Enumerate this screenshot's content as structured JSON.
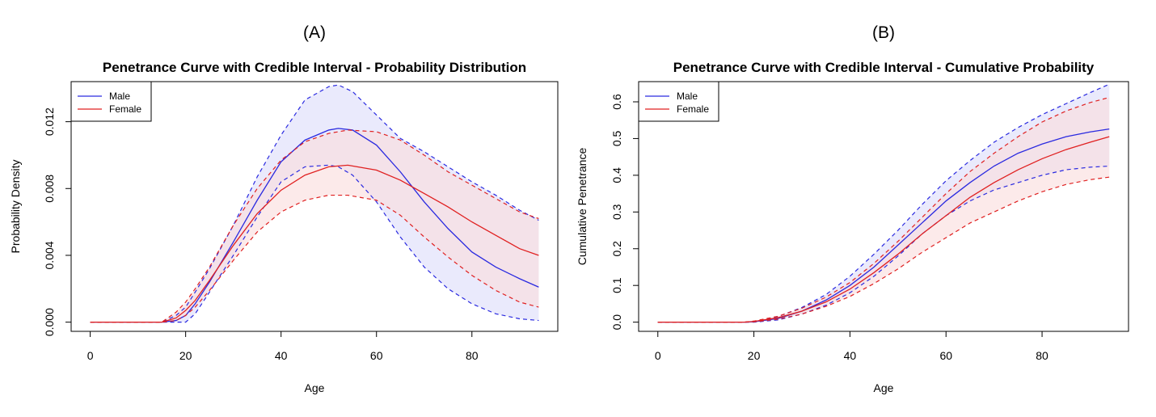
{
  "chart_data": [
    {
      "type": "line",
      "panel_label": "(A)",
      "title": "Penetrance Curve with Credible Interval - Probability Distribution",
      "xlabel": "Age",
      "ylabel": "Probability Density",
      "xlim": [
        -4,
        98
      ],
      "ylim": [
        -0.00055,
        0.0144
      ],
      "xticks": [
        0,
        20,
        40,
        60,
        80
      ],
      "xtick_labels": [
        "0",
        "20",
        "40",
        "60",
        "80"
      ],
      "yticks": [
        0,
        0.004,
        0.008,
        0.012
      ],
      "ytick_labels": [
        "0.000",
        "0.004",
        "0.008",
        "0.012"
      ],
      "legend_position": "top-left",
      "series": [
        {
          "name": "Male",
          "color": "#2a2ae0",
          "fill": "#dcdcfa",
          "x": [
            0,
            15,
            18,
            20,
            22,
            25,
            30,
            35,
            40,
            45,
            50,
            52,
            55,
            60,
            65,
            70,
            75,
            80,
            85,
            90,
            94
          ],
          "mean": [
            0,
            0,
            0.0001,
            0.0004,
            0.0011,
            0.0024,
            0.0048,
            0.0073,
            0.0096,
            0.0109,
            0.0115,
            0.0116,
            0.0115,
            0.0106,
            0.009,
            0.0072,
            0.0056,
            0.0042,
            0.0033,
            0.0026,
            0.0021
          ],
          "lower": [
            0,
            0,
            0,
            0,
            0.0005,
            0.0018,
            0.004,
            0.0063,
            0.0084,
            0.0093,
            0.0094,
            0.0093,
            0.0088,
            0.0072,
            0.0051,
            0.0033,
            0.002,
            0.0011,
            0.0005,
            0.0002,
            0.0001
          ],
          "upper": [
            0,
            0,
            0.0004,
            0.0009,
            0.0018,
            0.0032,
            0.0058,
            0.0087,
            0.0112,
            0.0133,
            0.0141,
            0.0142,
            0.0138,
            0.0124,
            0.011,
            0.0102,
            0.0093,
            0.0084,
            0.0076,
            0.0067,
            0.0061
          ]
        },
        {
          "name": "Female",
          "color": "#e02020",
          "fill": "#fadcdc",
          "x": [
            0,
            15,
            18,
            20,
            22,
            25,
            30,
            35,
            40,
            45,
            50,
            54,
            60,
            65,
            70,
            75,
            80,
            85,
            90,
            94
          ],
          "mean": [
            0,
            0,
            0.00025,
            0.0007,
            0.0013,
            0.0025,
            0.0046,
            0.0065,
            0.0079,
            0.0088,
            0.0093,
            0.0094,
            0.0091,
            0.0085,
            0.0077,
            0.0069,
            0.006,
            0.0052,
            0.0044,
            0.004
          ],
          "lower": [
            0,
            0,
            0.0001,
            0.0004,
            0.0009,
            0.0019,
            0.0037,
            0.0054,
            0.0066,
            0.0073,
            0.0076,
            0.0076,
            0.0073,
            0.0064,
            0.0051,
            0.0039,
            0.0028,
            0.0019,
            0.0012,
            0.0009
          ],
          "upper": [
            0,
            0,
            0.0006,
            0.0012,
            0.002,
            0.0033,
            0.0058,
            0.008,
            0.0097,
            0.0108,
            0.0113,
            0.0115,
            0.0114,
            0.0109,
            0.01,
            0.009,
            0.0082,
            0.0074,
            0.0066,
            0.0062
          ]
        }
      ]
    },
    {
      "type": "line",
      "panel_label": "(B)",
      "title": "Penetrance Curve with Credible Interval - Cumulative Probability",
      "xlabel": "Age",
      "ylabel": "Cumulative Penetrance",
      "xlim": [
        -4,
        98
      ],
      "ylim": [
        -0.025,
        0.655
      ],
      "xticks": [
        0,
        20,
        40,
        60,
        80
      ],
      "xtick_labels": [
        "0",
        "20",
        "40",
        "60",
        "80"
      ],
      "yticks": [
        0,
        0.1,
        0.2,
        0.3,
        0.4,
        0.5,
        0.6
      ],
      "ytick_labels": [
        "0.0",
        "0.1",
        "0.2",
        "0.3",
        "0.4",
        "0.5",
        "0.6"
      ],
      "legend_position": "top-left",
      "series": [
        {
          "name": "Male",
          "color": "#2a2ae0",
          "fill": "#dcdcfa",
          "x": [
            0,
            18,
            20,
            25,
            30,
            35,
            40,
            45,
            50,
            55,
            60,
            65,
            70,
            75,
            80,
            85,
            90,
            94
          ],
          "mean": [
            0,
            0,
            0.001,
            0.01,
            0.03,
            0.06,
            0.1,
            0.15,
            0.21,
            0.27,
            0.33,
            0.38,
            0.425,
            0.46,
            0.485,
            0.505,
            0.518,
            0.526
          ],
          "lower": [
            0,
            0,
            0,
            0.006,
            0.022,
            0.046,
            0.08,
            0.125,
            0.18,
            0.24,
            0.29,
            0.33,
            0.36,
            0.38,
            0.4,
            0.415,
            0.422,
            0.425
          ],
          "upper": [
            0,
            0,
            0.002,
            0.015,
            0.04,
            0.075,
            0.125,
            0.185,
            0.25,
            0.32,
            0.385,
            0.44,
            0.49,
            0.53,
            0.565,
            0.595,
            0.625,
            0.648
          ]
        },
        {
          "name": "Female",
          "color": "#e02020",
          "fill": "#fadcdc",
          "x": [
            0,
            18,
            20,
            25,
            30,
            35,
            40,
            45,
            50,
            55,
            60,
            65,
            70,
            75,
            80,
            85,
            90,
            94
          ],
          "mean": [
            0,
            0,
            0.002,
            0.012,
            0.03,
            0.055,
            0.09,
            0.135,
            0.185,
            0.24,
            0.29,
            0.34,
            0.38,
            0.415,
            0.445,
            0.47,
            0.49,
            0.505
          ],
          "lower": [
            0,
            0,
            0.001,
            0.008,
            0.022,
            0.043,
            0.07,
            0.105,
            0.145,
            0.19,
            0.23,
            0.27,
            0.3,
            0.33,
            0.355,
            0.375,
            0.388,
            0.395
          ],
          "upper": [
            0,
            0,
            0.003,
            0.016,
            0.038,
            0.068,
            0.108,
            0.16,
            0.22,
            0.285,
            0.35,
            0.41,
            0.46,
            0.505,
            0.545,
            0.575,
            0.598,
            0.612
          ]
        }
      ]
    }
  ]
}
